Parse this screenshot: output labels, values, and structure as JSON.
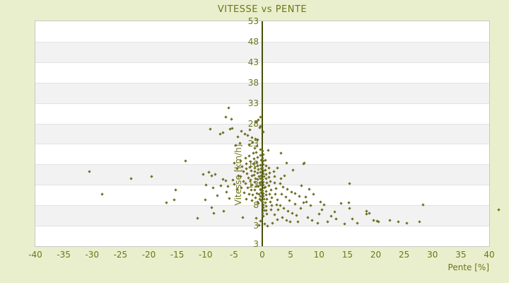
{
  "page": {
    "background_color": "#e9efcc",
    "text_color": "#6e7419",
    "plot_bg_color": "#ffffff",
    "plot_border_color": "#c8c8c8",
    "band_alt_color": "#f2f2f2",
    "gridline_color": "#e2e2e2",
    "zero_axis_color": "#454f08",
    "point_color": "#6d7022"
  },
  "chart_data": {
    "type": "scatter",
    "title": "VITESSE vs PENTE",
    "xlabel": "Pente [%]",
    "ylabel": "Vitesse [km/h]",
    "xlim": [
      -40,
      40
    ],
    "ylim": [
      -2,
      53
    ],
    "x_ticks": [
      -40,
      -35,
      -30,
      -25,
      -20,
      -15,
      -10,
      -5,
      0,
      5,
      10,
      15,
      20,
      25,
      30,
      35,
      40
    ],
    "y_ticks": [
      53,
      48,
      43,
      38,
      33,
      28,
      23,
      18,
      13,
      8,
      3
    ],
    "y_bottom_extra_label": "3",
    "grid": "horizontal-bands",
    "legend": "none",
    "marker": "diamond",
    "points": [
      [
        -30.4,
        16.1
      ],
      [
        -28.1,
        10.6
      ],
      [
        -23.1,
        14.4
      ],
      [
        -19.4,
        14.9
      ],
      [
        -16.8,
        8.5
      ],
      [
        -15.5,
        9.2
      ],
      [
        -15.2,
        11.6
      ],
      [
        -13.5,
        18.7
      ],
      [
        -11.3,
        4.8
      ],
      [
        -10.4,
        15.4
      ],
      [
        -9.8,
        12.9
      ],
      [
        -9.3,
        16.0
      ],
      [
        -8.9,
        15.1
      ],
      [
        -8.8,
        7.4
      ],
      [
        -8.6,
        12.1
      ],
      [
        -8.5,
        5.9
      ],
      [
        -8.2,
        15.4
      ],
      [
        -7.8,
        10.3
      ],
      [
        -7.2,
        12.7
      ],
      [
        -6.9,
        14.3
      ],
      [
        -6.7,
        6.4
      ],
      [
        -6.3,
        13.9
      ],
      [
        -6.2,
        11.1
      ],
      [
        -6.0,
        12.5
      ],
      [
        -5.7,
        9.6
      ],
      [
        -5.1,
        14.1
      ],
      [
        -10.0,
        9.2
      ],
      [
        -5.9,
        31.8
      ],
      [
        -6.3,
        29.5
      ],
      [
        -5.3,
        29.0
      ],
      [
        -9.1,
        26.6
      ],
      [
        -7.4,
        25.4
      ],
      [
        -6.9,
        25.7
      ],
      [
        -5.6,
        26.6
      ],
      [
        -5.2,
        26.7
      ],
      [
        -4.2,
        24.6
      ],
      [
        -3.6,
        26.1
      ],
      [
        -3.0,
        25.3
      ],
      [
        -2.5,
        24.9
      ],
      [
        -2.1,
        26.4
      ],
      [
        -1.8,
        24.4
      ],
      [
        -1.6,
        23.2
      ],
      [
        -1.1,
        24.2
      ],
      [
        -0.7,
        23.9
      ],
      [
        -2.2,
        22.8
      ],
      [
        -3.9,
        23.0
      ],
      [
        -4.6,
        22.5
      ],
      [
        -0.9,
        22.4
      ],
      [
        -1.3,
        21.9
      ],
      [
        -0.6,
        28.7
      ],
      [
        -0.3,
        29.4
      ],
      [
        -1.0,
        28.2
      ],
      [
        -0.2,
        27.3
      ],
      [
        0.2,
        25.8
      ],
      [
        -0.4,
        26.9
      ],
      [
        -4.8,
        18.2
      ],
      [
        -4.4,
        16.9
      ],
      [
        -4.1,
        15.2
      ],
      [
        -4.9,
        13.1
      ],
      [
        -4.3,
        11.8
      ],
      [
        -3.7,
        18.8
      ],
      [
        -3.5,
        17.3
      ],
      [
        -3.2,
        16.1
      ],
      [
        -3.8,
        15.0
      ],
      [
        -3.3,
        13.7
      ],
      [
        -3.6,
        12.2
      ],
      [
        -3.1,
        10.9
      ],
      [
        -2.9,
        19.4
      ],
      [
        -2.7,
        18.1
      ],
      [
        -2.8,
        16.8
      ],
      [
        -2.6,
        15.7
      ],
      [
        -2.4,
        14.6
      ],
      [
        -2.9,
        13.3
      ],
      [
        -2.5,
        12.1
      ],
      [
        -2.3,
        10.7
      ],
      [
        -2.7,
        9.4
      ],
      [
        -2.2,
        19.9
      ],
      [
        -2.0,
        18.6
      ],
      [
        -2.1,
        17.2
      ],
      [
        -1.9,
        16.3
      ],
      [
        -1.8,
        15.1
      ],
      [
        -2.0,
        14.0
      ],
      [
        -1.7,
        12.9
      ],
      [
        -1.9,
        11.6
      ],
      [
        -1.6,
        10.4
      ],
      [
        -1.8,
        9.0
      ],
      [
        -1.5,
        20.6
      ],
      [
        -1.4,
        19.2
      ],
      [
        -1.5,
        18.0
      ],
      [
        -1.3,
        17.1
      ],
      [
        -1.2,
        16.2
      ],
      [
        -1.4,
        15.3
      ],
      [
        -1.1,
        14.4
      ],
      [
        -1.3,
        13.5
      ],
      [
        -1.0,
        12.6
      ],
      [
        -1.2,
        11.7
      ],
      [
        -0.9,
        10.8
      ],
      [
        -1.1,
        9.8
      ],
      [
        -0.8,
        8.8
      ],
      [
        -1.0,
        20.9
      ],
      [
        -0.8,
        19.6
      ],
      [
        -0.9,
        18.4
      ],
      [
        -0.7,
        17.5
      ],
      [
        -0.6,
        16.6
      ],
      [
        -0.8,
        15.8
      ],
      [
        -0.5,
        15.0
      ],
      [
        -0.7,
        14.2
      ],
      [
        -0.4,
        13.4
      ],
      [
        -0.6,
        12.5
      ],
      [
        -0.3,
        11.6
      ],
      [
        -0.5,
        10.6
      ],
      [
        -0.4,
        9.5
      ],
      [
        -0.6,
        8.4
      ],
      [
        -0.2,
        21.5
      ],
      [
        -0.3,
        20.2
      ],
      [
        -0.1,
        19.0
      ],
      [
        -0.2,
        17.8
      ],
      [
        -0.1,
        16.9
      ],
      [
        -0.3,
        16.0
      ],
      [
        -0.1,
        15.2
      ],
      [
        -0.2,
        14.4
      ],
      [
        -0.1,
        13.6
      ],
      [
        -0.3,
        12.8
      ],
      [
        -0.2,
        11.9
      ],
      [
        -0.1,
        11.0
      ],
      [
        -0.2,
        10.1
      ],
      [
        -0.1,
        9.1
      ],
      [
        0.1,
        21.2
      ],
      [
        0.2,
        20.3
      ],
      [
        0.1,
        19.5
      ],
      [
        0.3,
        18.7
      ],
      [
        0.2,
        17.9
      ],
      [
        0.1,
        17.1
      ],
      [
        0.3,
        16.4
      ],
      [
        0.2,
        15.7
      ],
      [
        0.4,
        15.0
      ],
      [
        0.1,
        14.3
      ],
      [
        0.3,
        13.6
      ],
      [
        0.2,
        12.9
      ],
      [
        0.4,
        12.2
      ],
      [
        0.1,
        11.5
      ],
      [
        0.3,
        10.8
      ],
      [
        0.2,
        10.1
      ],
      [
        0.4,
        9.4
      ],
      [
        0.1,
        8.7
      ],
      [
        0.3,
        8.0
      ],
      [
        0.2,
        7.3
      ],
      [
        0.4,
        6.6
      ],
      [
        0.1,
        5.9
      ],
      [
        0.3,
        5.2
      ],
      [
        0.6,
        18.9
      ],
      [
        0.7,
        17.6
      ],
      [
        0.6,
        16.5
      ],
      [
        0.8,
        15.4
      ],
      [
        0.7,
        14.4
      ],
      [
        0.9,
        13.4
      ],
      [
        0.6,
        12.4
      ],
      [
        0.8,
        11.4
      ],
      [
        0.7,
        10.4
      ],
      [
        0.9,
        9.5
      ],
      [
        0.6,
        8.5
      ],
      [
        0.8,
        7.6
      ],
      [
        0.7,
        6.7
      ],
      [
        0.9,
        5.8
      ],
      [
        1.1,
        21.4
      ],
      [
        1.2,
        17.0
      ],
      [
        1.4,
        15.9
      ],
      [
        1.2,
        14.8
      ],
      [
        1.5,
        13.8
      ],
      [
        1.3,
        12.7
      ],
      [
        1.6,
        11.7
      ],
      [
        1.4,
        10.7
      ],
      [
        1.7,
        9.7
      ],
      [
        1.5,
        8.7
      ],
      [
        1.8,
        7.8
      ],
      [
        1.6,
        6.9
      ],
      [
        2.1,
        16.2
      ],
      [
        2.3,
        14.9
      ],
      [
        2.2,
        13.4
      ],
      [
        2.5,
        12.0
      ],
      [
        2.4,
        10.6
      ],
      [
        2.7,
        9.3
      ],
      [
        2.6,
        8.1
      ],
      [
        2.9,
        6.9
      ],
      [
        2.2,
        5.6
      ],
      [
        2.8,
        4.4
      ],
      [
        3.4,
        20.6
      ],
      [
        4.4,
        18.2
      ],
      [
        7.5,
        18.2
      ],
      [
        7.4,
        18.0
      ],
      [
        5.5,
        16.5
      ],
      [
        2.7,
        17.1
      ],
      [
        4.0,
        15.2
      ],
      [
        3.4,
        14.5
      ],
      [
        3.2,
        13.3
      ],
      [
        3.8,
        12.4
      ],
      [
        4.5,
        11.9
      ],
      [
        5.2,
        11.2
      ],
      [
        3.5,
        10.6
      ],
      [
        4.2,
        10.0
      ],
      [
        5.8,
        10.8
      ],
      [
        6.6,
        10.1
      ],
      [
        7.0,
        12.7
      ],
      [
        8.4,
        11.8
      ],
      [
        9.1,
        10.6
      ],
      [
        7.7,
        9.9
      ],
      [
        7.9,
        8.7
      ],
      [
        7.3,
        8.6
      ],
      [
        8.6,
        7.9
      ],
      [
        3.3,
        7.8
      ],
      [
        3.9,
        7.1
      ],
      [
        4.6,
        6.5
      ],
      [
        5.3,
        6.0
      ],
      [
        6.1,
        5.4
      ],
      [
        3.6,
        4.9
      ],
      [
        4.3,
        4.3
      ],
      [
        5.0,
        3.8
      ],
      [
        6.8,
        7.1
      ],
      [
        5.9,
        8.2
      ],
      [
        4.8,
        9.1
      ],
      [
        6.3,
        3.9
      ],
      [
        8.1,
        5.0
      ],
      [
        8.9,
        4.3
      ],
      [
        15.4,
        13.2
      ],
      [
        10.4,
        8.7
      ],
      [
        11.0,
        8.1
      ],
      [
        14.0,
        8.4
      ],
      [
        15.3,
        8.6
      ],
      [
        10.6,
        6.9
      ],
      [
        15.4,
        7.1
      ],
      [
        18.5,
        6.5
      ],
      [
        19.0,
        5.9
      ],
      [
        18.4,
        5.8
      ],
      [
        15.9,
        4.6
      ],
      [
        19.7,
        4.2
      ],
      [
        20.3,
        4.1
      ],
      [
        20.5,
        3.9
      ],
      [
        12.2,
        5.2
      ],
      [
        13.1,
        4.6
      ],
      [
        11.6,
        3.9
      ],
      [
        9.8,
        3.5
      ],
      [
        14.6,
        3.4
      ],
      [
        16.8,
        3.6
      ],
      [
        12.8,
        6.3
      ],
      [
        10.1,
        5.7
      ],
      [
        22.6,
        4.2
      ],
      [
        24.1,
        3.9
      ],
      [
        25.5,
        3.6
      ],
      [
        27.8,
        3.8
      ],
      [
        28.4,
        8.0
      ],
      [
        41.8,
        6.9
      ],
      [
        -1.0,
        4.8
      ],
      [
        -3.4,
        5.0
      ],
      [
        0.5,
        3.4
      ],
      [
        -0.5,
        3.1
      ],
      [
        1.0,
        2.9
      ],
      [
        1.9,
        3.6
      ],
      [
        -0.2,
        4.1
      ]
    ]
  }
}
